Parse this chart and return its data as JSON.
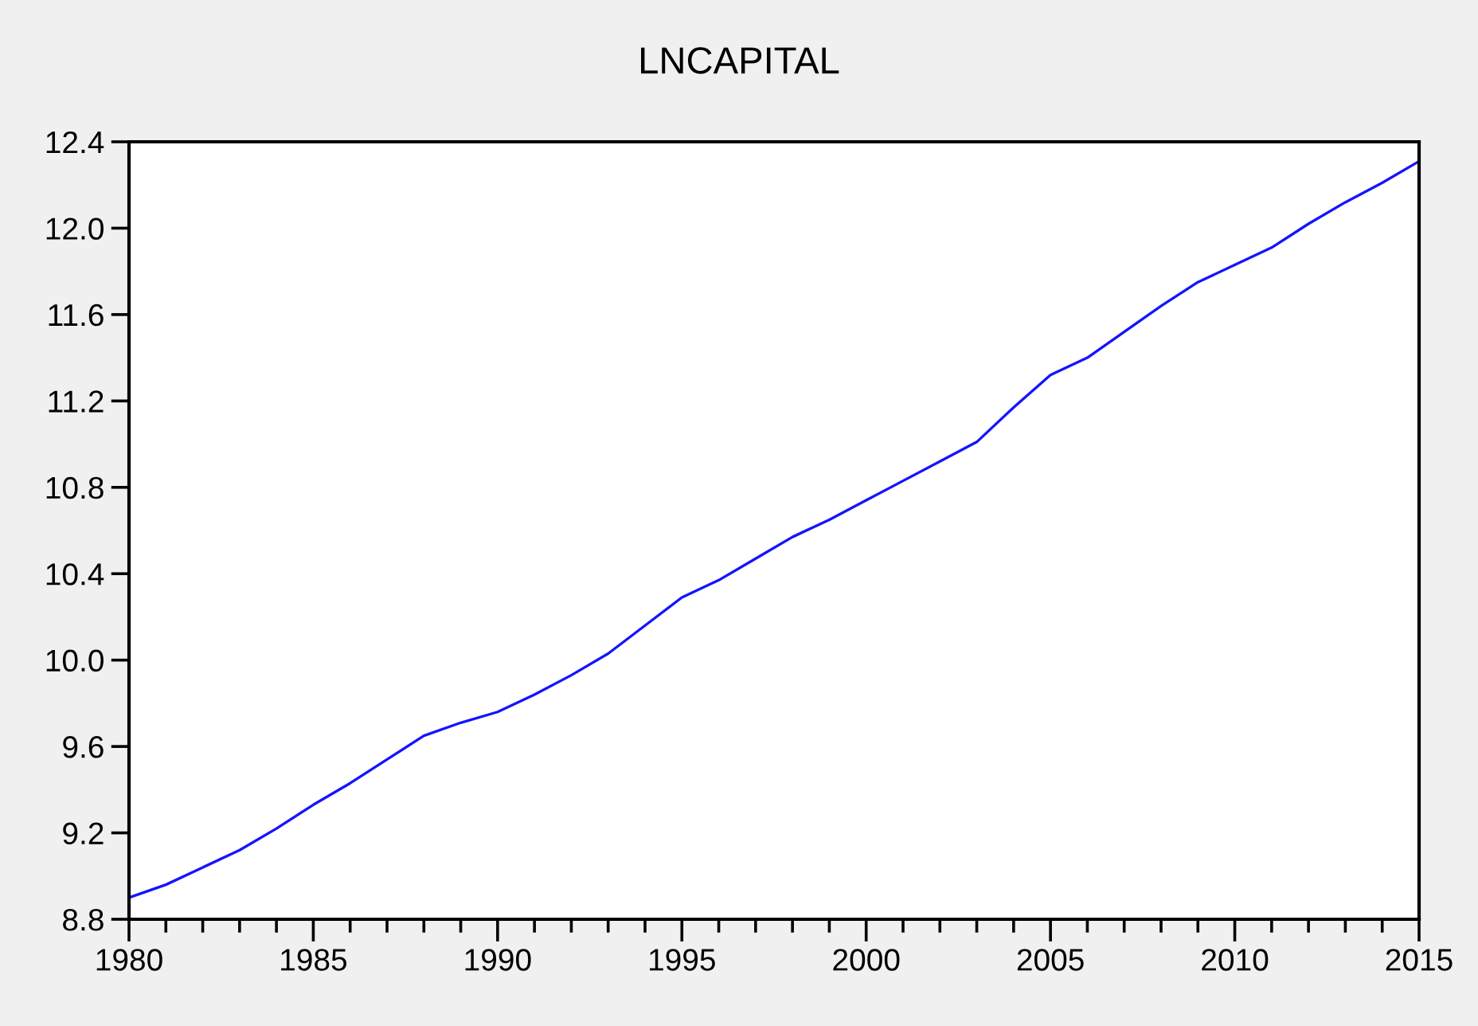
{
  "chart_data": {
    "type": "line",
    "title": "LNCAPITAL",
    "x": [
      1980,
      1981,
      1982,
      1983,
      1984,
      1985,
      1986,
      1987,
      1988,
      1989,
      1990,
      1991,
      1992,
      1993,
      1994,
      1995,
      1996,
      1997,
      1998,
      1999,
      2000,
      2001,
      2002,
      2003,
      2004,
      2005,
      2006,
      2007,
      2008,
      2009,
      2010,
      2011,
      2012,
      2013,
      2014,
      2015
    ],
    "values": [
      8.9,
      8.96,
      9.04,
      9.12,
      9.22,
      9.33,
      9.43,
      9.54,
      9.65,
      9.71,
      9.76,
      9.84,
      9.93,
      10.03,
      10.16,
      10.29,
      10.37,
      10.47,
      10.57,
      10.65,
      10.74,
      10.83,
      10.92,
      11.01,
      11.17,
      11.32,
      11.4,
      11.52,
      11.64,
      11.75,
      11.83,
      11.91,
      12.02,
      12.12,
      12.21,
      12.31
    ],
    "color": "#1414ff",
    "xlim": [
      1980,
      2015
    ],
    "ylim": [
      8.8,
      12.4
    ],
    "xticks": [
      1980,
      {
        "value": 1981,
        "label": null
      },
      {
        "value": 1982,
        "label": null
      },
      {
        "value": 1983,
        "label": null
      },
      {
        "value": 1984,
        "label": null
      },
      1985,
      {
        "value": 1986,
        "label": null
      },
      {
        "value": 1987,
        "label": null
      },
      {
        "value": 1988,
        "label": null
      },
      {
        "value": 1989,
        "label": null
      },
      1990,
      {
        "value": 1991,
        "label": null
      },
      {
        "value": 1992,
        "label": null
      },
      {
        "value": 1993,
        "label": null
      },
      {
        "value": 1994,
        "label": null
      },
      1995,
      {
        "value": 1996,
        "label": null
      },
      {
        "value": 1997,
        "label": null
      },
      {
        "value": 1998,
        "label": null
      },
      {
        "value": 1999,
        "label": null
      },
      2000,
      {
        "value": 2001,
        "label": null
      },
      {
        "value": 2002,
        "label": null
      },
      {
        "value": 2003,
        "label": null
      },
      {
        "value": 2004,
        "label": null
      },
      2005,
      {
        "value": 2006,
        "label": null
      },
      {
        "value": 2007,
        "label": null
      },
      {
        "value": 2008,
        "label": null
      },
      {
        "value": 2009,
        "label": null
      },
      2010,
      {
        "value": 2011,
        "label": null
      },
      {
        "value": 2012,
        "label": null
      },
      {
        "value": 2013,
        "label": null
      },
      {
        "value": 2014,
        "label": null
      },
      2015
    ],
    "yticks": [
      8.8,
      9.2,
      9.6,
      {
        "value": 10,
        "label": "10.0"
      },
      10.4,
      10.8,
      11.2,
      11.6,
      {
        "value": 12,
        "label": "12.0"
      },
      12.4
    ],
    "grid": false
  }
}
